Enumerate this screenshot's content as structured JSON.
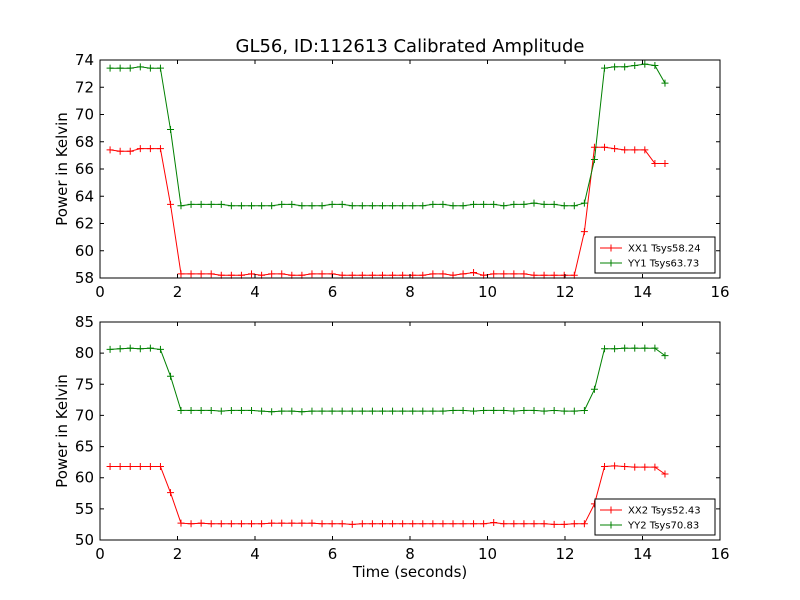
{
  "chart_data": {
    "type": "line",
    "title": "GL56, ID:112613 Calibrated Amplitude",
    "panels": [
      {
        "xlabel": "",
        "ylabel": "Power in Kelvin",
        "xlim": [
          0,
          16
        ],
        "ylim": [
          58,
          74
        ],
        "xticks": [
          "0",
          "2",
          "4",
          "6",
          "8",
          "10",
          "12",
          "14",
          "16"
        ],
        "yticks": [
          "58",
          "60",
          "62",
          "64",
          "66",
          "68",
          "70",
          "72",
          "74"
        ],
        "legend_position": "lower right",
        "x": [
          0.26,
          0.52,
          0.78,
          1.04,
          1.3,
          1.56,
          1.82,
          2.09,
          2.35,
          2.61,
          2.87,
          3.13,
          3.39,
          3.65,
          3.91,
          4.17,
          4.43,
          4.69,
          4.95,
          5.21,
          5.47,
          5.73,
          5.99,
          6.25,
          6.51,
          6.77,
          7.03,
          7.29,
          7.55,
          7.81,
          8.07,
          8.33,
          8.59,
          8.85,
          9.11,
          9.37,
          9.64,
          9.9,
          10.16,
          10.42,
          10.68,
          10.94,
          11.2,
          11.46,
          11.72,
          11.98,
          12.24,
          12.5,
          12.76,
          13.02,
          13.28,
          13.54,
          13.8,
          14.06,
          14.32,
          14.58
        ],
        "series": [
          {
            "name": "XX1 Tsys58.24",
            "color": "#ff0000",
            "values": [
              67.4,
              67.3,
              67.3,
              67.5,
              67.5,
              67.5,
              63.4,
              58.3,
              58.3,
              58.3,
              58.3,
              58.2,
              58.2,
              58.2,
              58.3,
              58.2,
              58.3,
              58.3,
              58.2,
              58.2,
              58.3,
              58.3,
              58.3,
              58.2,
              58.2,
              58.2,
              58.2,
              58.2,
              58.2,
              58.2,
              58.2,
              58.2,
              58.3,
              58.3,
              58.2,
              58.3,
              58.4,
              58.2,
              58.3,
              58.3,
              58.3,
              58.3,
              58.2,
              58.2,
              58.2,
              58.2,
              58.2,
              61.4,
              67.6,
              67.6,
              67.5,
              67.4,
              67.4,
              67.4,
              66.4,
              66.4
            ]
          },
          {
            "name": "YY1 Tsys63.73",
            "color": "#008000",
            "values": [
              73.4,
              73.4,
              73.4,
              73.5,
              73.4,
              73.4,
              68.9,
              63.3,
              63.4,
              63.4,
              63.4,
              63.4,
              63.3,
              63.3,
              63.3,
              63.3,
              63.3,
              63.4,
              63.4,
              63.3,
              63.3,
              63.3,
              63.4,
              63.4,
              63.3,
              63.3,
              63.3,
              63.3,
              63.3,
              63.3,
              63.3,
              63.3,
              63.4,
              63.4,
              63.3,
              63.3,
              63.4,
              63.4,
              63.4,
              63.3,
              63.4,
              63.4,
              63.5,
              63.4,
              63.4,
              63.3,
              63.3,
              63.5,
              66.7,
              73.4,
              73.5,
              73.5,
              73.6,
              73.7,
              73.6,
              72.3
            ]
          }
        ]
      },
      {
        "xlabel": "Time (seconds)",
        "ylabel": "Power in Kelvin",
        "xlim": [
          0,
          16
        ],
        "ylim": [
          50,
          85
        ],
        "xticks": [
          "0",
          "2",
          "4",
          "6",
          "8",
          "10",
          "12",
          "14",
          "16"
        ],
        "yticks": [
          "50",
          "55",
          "60",
          "65",
          "70",
          "75",
          "80",
          "85"
        ],
        "legend_position": "lower right",
        "x": [
          0.26,
          0.52,
          0.78,
          1.04,
          1.3,
          1.56,
          1.82,
          2.09,
          2.35,
          2.61,
          2.87,
          3.13,
          3.39,
          3.65,
          3.91,
          4.17,
          4.43,
          4.69,
          4.95,
          5.21,
          5.47,
          5.73,
          5.99,
          6.25,
          6.51,
          6.77,
          7.03,
          7.29,
          7.55,
          7.81,
          8.07,
          8.33,
          8.59,
          8.85,
          9.11,
          9.37,
          9.64,
          9.9,
          10.16,
          10.42,
          10.68,
          10.94,
          11.2,
          11.46,
          11.72,
          11.98,
          12.24,
          12.5,
          12.76,
          13.02,
          13.28,
          13.54,
          13.8,
          14.06,
          14.32,
          14.58
        ],
        "series": [
          {
            "name": "XX2 Tsys52.43",
            "color": "#ff0000",
            "values": [
              61.8,
              61.8,
              61.8,
              61.8,
              61.8,
              61.8,
              57.6,
              52.7,
              52.6,
              52.7,
              52.6,
              52.6,
              52.6,
              52.6,
              52.6,
              52.6,
              52.7,
              52.7,
              52.7,
              52.7,
              52.7,
              52.6,
              52.6,
              52.6,
              52.5,
              52.6,
              52.6,
              52.6,
              52.6,
              52.6,
              52.6,
              52.6,
              52.6,
              52.6,
              52.6,
              52.6,
              52.6,
              52.6,
              52.8,
              52.6,
              52.6,
              52.6,
              52.6,
              52.6,
              52.5,
              52.5,
              52.6,
              52.6,
              55.8,
              61.8,
              61.9,
              61.8,
              61.7,
              61.7,
              61.7,
              60.6
            ]
          },
          {
            "name": "YY2 Tsys70.83",
            "color": "#008000",
            "values": [
              80.6,
              80.7,
              80.8,
              80.7,
              80.8,
              80.6,
              76.3,
              70.8,
              70.8,
              70.8,
              70.8,
              70.7,
              70.8,
              70.8,
              70.8,
              70.7,
              70.6,
              70.7,
              70.7,
              70.6,
              70.7,
              70.7,
              70.7,
              70.7,
              70.7,
              70.7,
              70.7,
              70.7,
              70.7,
              70.7,
              70.7,
              70.7,
              70.7,
              70.7,
              70.8,
              70.8,
              70.7,
              70.8,
              70.8,
              70.8,
              70.7,
              70.8,
              70.8,
              70.7,
              70.8,
              70.7,
              70.7,
              70.8,
              74.2,
              80.7,
              80.7,
              80.8,
              80.8,
              80.8,
              80.8,
              79.6
            ]
          }
        ]
      }
    ]
  }
}
